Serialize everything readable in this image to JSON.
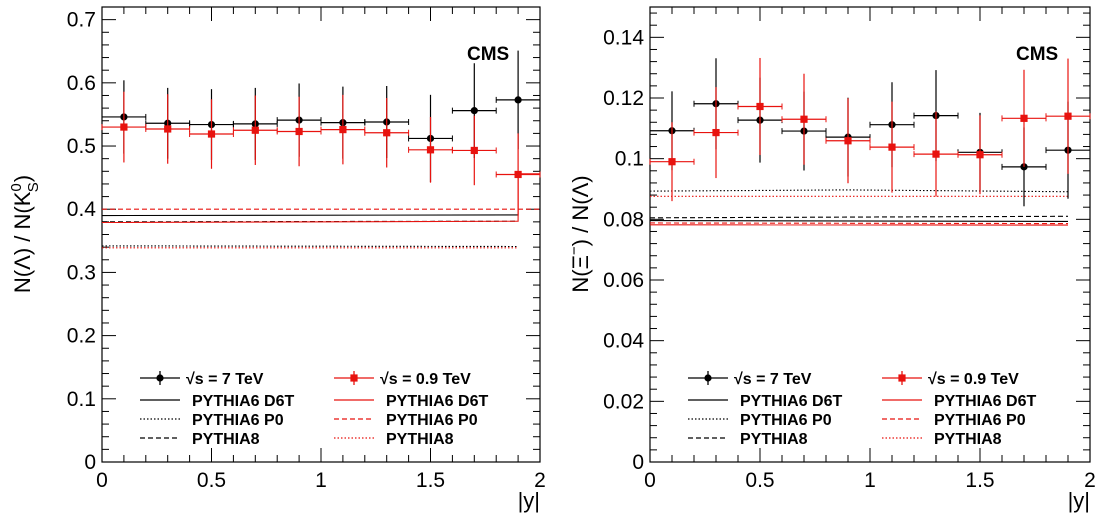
{
  "chart_data": [
    {
      "type": "scatter",
      "badge": "CMS",
      "ylabel_parts": {
        "pre": "N(Λ) / N(K",
        "sup": "0",
        "sub": "S",
        "post": ")"
      },
      "xlabel": "|y|",
      "xlim": [
        0,
        2
      ],
      "ylim": [
        0,
        0.72
      ],
      "xticks": [
        0,
        0.5,
        1,
        1.5,
        2
      ],
      "xtick_labels": [
        "0",
        "0.5",
        "1",
        "1.5",
        "2"
      ],
      "yticks": [
        0,
        0.1,
        0.2,
        0.3,
        0.4,
        0.5,
        0.6,
        0.7
      ],
      "ytick_labels": [
        "0",
        "0.1",
        "0.2",
        "0.3",
        "0.4",
        "0.5",
        "0.6",
        "0.7"
      ],
      "series": [
        {
          "name": "√s = 7 TeV",
          "color": "#000000",
          "marker": "circle",
          "x": [
            0.1,
            0.3,
            0.5,
            0.7,
            0.9,
            1.1,
            1.3,
            1.5,
            1.7,
            1.9
          ],
          "xerr": 0.1,
          "y": [
            0.546,
            0.536,
            0.534,
            0.535,
            0.541,
            0.537,
            0.538,
            0.512,
            0.556,
            0.573
          ],
          "yerr": [
            0.058,
            0.056,
            0.056,
            0.057,
            0.058,
            0.057,
            0.057,
            0.069,
            0.075,
            0.078
          ]
        },
        {
          "name": "√s = 0.9 TeV",
          "color": "#e8130f",
          "marker": "square",
          "x": [
            0.1,
            0.3,
            0.5,
            0.7,
            0.9,
            1.1,
            1.3,
            1.5,
            1.7,
            1.9
          ],
          "xerr": 0.1,
          "y": [
            0.53,
            0.527,
            0.519,
            0.525,
            0.523,
            0.526,
            0.521,
            0.494,
            0.493,
            0.455
          ],
          "yerr": [
            0.056,
            0.055,
            0.055,
            0.055,
            0.055,
            0.055,
            0.055,
            0.052,
            0.055,
            0.065
          ]
        }
      ],
      "curves": [
        {
          "label": "PYTHIA6 D6T",
          "color": "#000000",
          "style": "solid",
          "x": [
            0,
            1.9
          ],
          "y": [
            0.39,
            0.391
          ]
        },
        {
          "label": "PYTHIA6 P0",
          "color": "#000000",
          "style": "dotted",
          "x": [
            0,
            1.9
          ],
          "y": [
            0.342,
            0.341
          ]
        },
        {
          "label": "PYTHIA8",
          "color": "#000000",
          "style": "dashed",
          "x": [
            0,
            1.9
          ],
          "y": [
            0.38,
            0.381
          ]
        },
        {
          "label": "PYTHIA6 D6T",
          "color": "#e8130f",
          "style": "solid",
          "x": [
            0,
            1.9,
            1.9,
            2.0
          ],
          "y": [
            0.379,
            0.381,
            0.456,
            0.456
          ]
        },
        {
          "label": "PYTHIA6 P0",
          "color": "#e8130f",
          "style": "dashed",
          "x": [
            0,
            2.0
          ],
          "y": [
            0.4,
            0.4
          ]
        },
        {
          "label": "PYTHIA8",
          "color": "#e8130f",
          "style": "dotted",
          "x": [
            0,
            1.9
          ],
          "y": [
            0.339,
            0.339
          ]
        }
      ],
      "legend": {
        "left": [
          "√s = 7 TeV",
          "PYTHIA6 D6T",
          "PYTHIA6 P0",
          "PYTHIA8"
        ],
        "right": [
          "√s = 0.9 TeV",
          "PYTHIA6 D6T",
          "PYTHIA6 P0",
          "PYTHIA8"
        ]
      }
    },
    {
      "type": "scatter",
      "badge": "CMS",
      "ylabel_parts": {
        "pre": "N(Ξ",
        "sup": "−",
        "sub": "",
        "post": ") / N(Λ)"
      },
      "xlabel": "|y|",
      "xlim": [
        0,
        2
      ],
      "ylim": [
        0,
        0.15
      ],
      "xticks": [
        0,
        0.5,
        1,
        1.5,
        2
      ],
      "xtick_labels": [
        "0",
        "0.5",
        "1",
        "1.5",
        "2"
      ],
      "yticks": [
        0,
        0.02,
        0.04,
        0.06,
        0.08,
        0.1,
        0.12,
        0.14
      ],
      "ytick_labels": [
        "0",
        "0.02",
        "0.04",
        "0.06",
        "0.08",
        "0.1",
        "0.12",
        "0.14"
      ],
      "series": [
        {
          "name": "√s = 7 TeV",
          "color": "#000000",
          "marker": "circle",
          "x": [
            0.1,
            0.3,
            0.5,
            0.7,
            0.9,
            1.1,
            1.3,
            1.5,
            1.7,
            1.9
          ],
          "xerr": 0.1,
          "y": [
            0.1092,
            0.1181,
            0.1127,
            0.1091,
            0.1071,
            0.1112,
            0.1142,
            0.1021,
            0.0973,
            0.1028
          ],
          "yerr": [
            0.013,
            0.015,
            0.014,
            0.013,
            0.013,
            0.014,
            0.015,
            0.013,
            0.013,
            0.016
          ]
        },
        {
          "name": "√s = 0.9 TeV",
          "color": "#e8130f",
          "marker": "square",
          "x": [
            0.1,
            0.3,
            0.5,
            0.7,
            0.9,
            1.1,
            1.3,
            1.5,
            1.7,
            1.9
          ],
          "xerr": 0.1,
          "y": [
            0.099,
            0.1086,
            0.1172,
            0.113,
            0.1059,
            0.1038,
            0.1015,
            0.1013,
            0.1133,
            0.114
          ],
          "yerr": [
            0.013,
            0.015,
            0.016,
            0.015,
            0.014,
            0.015,
            0.014,
            0.013,
            0.016,
            0.019
          ]
        }
      ],
      "curves": [
        {
          "label": "PYTHIA6 D6T",
          "color": "#000000",
          "style": "solid",
          "x": [
            0,
            1.9
          ],
          "y": [
            0.0796,
            0.0793
          ]
        },
        {
          "label": "PYTHIA6 P0",
          "color": "#000000",
          "style": "dotted",
          "x": [
            0,
            0.9,
            1.9
          ],
          "y": [
            0.0893,
            0.0897,
            0.0891
          ]
        },
        {
          "label": "PYTHIA8",
          "color": "#000000",
          "style": "dashed",
          "x": [
            0,
            1.9
          ],
          "y": [
            0.0805,
            0.081
          ]
        },
        {
          "label": "PYTHIA6 D6T",
          "color": "#e8130f",
          "style": "solid",
          "x": [
            0,
            1.9
          ],
          "y": [
            0.0782,
            0.0781
          ]
        },
        {
          "label": "PYTHIA6 P0",
          "color": "#e8130f",
          "style": "dashed",
          "x": [
            0,
            1.9
          ],
          "y": [
            0.0788,
            0.0786
          ]
        },
        {
          "label": "PYTHIA8",
          "color": "#e8130f",
          "style": "dotted",
          "x": [
            0,
            1.9
          ],
          "y": [
            0.0876,
            0.0876
          ]
        }
      ],
      "legend": {
        "left": [
          "√s = 7 TeV",
          "PYTHIA6 D6T",
          "PYTHIA6 P0",
          "PYTHIA8"
        ],
        "right": [
          "√s = 0.9 TeV",
          "PYTHIA6 D6T",
          "PYTHIA6 P0",
          "PYTHIA8"
        ]
      }
    }
  ]
}
